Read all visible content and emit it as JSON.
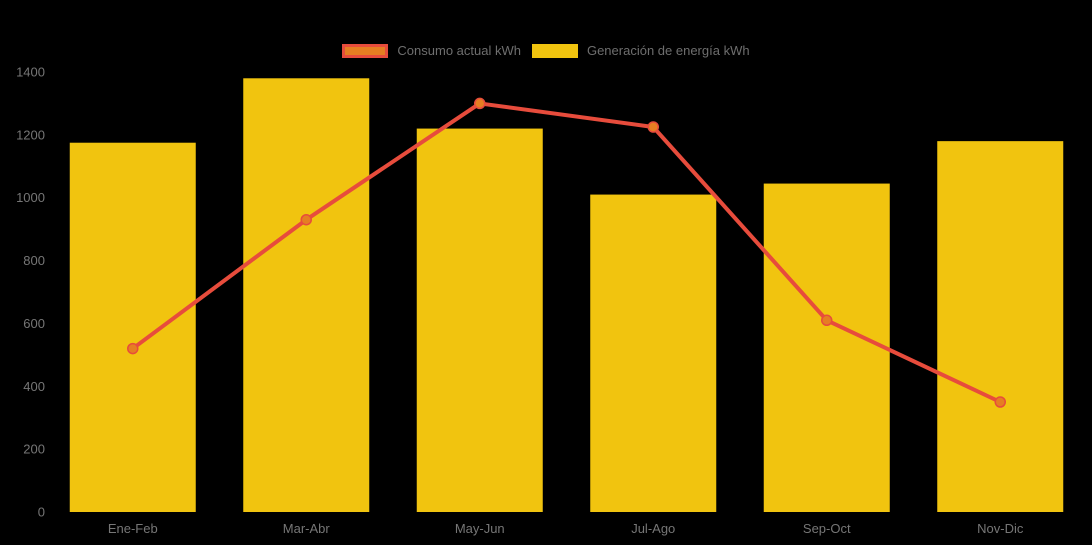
{
  "page": {
    "background_color": "#000000"
  },
  "legend": {
    "position": "top-center",
    "text_color": "#6e6e6e"
  },
  "chart_data": {
    "type": "combo",
    "categories": [
      "Ene-Feb",
      "Mar-Abr",
      "May-Jun",
      "Jul-Ago",
      "Sep-Oct",
      "Nov-Dic"
    ],
    "series": [
      {
        "name": "Consumo actual kWh",
        "type": "line",
        "values": [
          520,
          930,
          1300,
          1225,
          610,
          350
        ],
        "line_color": "#e74c3c",
        "point_fill": "#e67e22"
      },
      {
        "name": "Generación de energía kWh",
        "type": "bar",
        "values": [
          1175,
          1380,
          1220,
          1010,
          1045,
          1180
        ],
        "bar_color": "#f1c40f"
      }
    ],
    "ylim": [
      0,
      1400
    ],
    "y_ticks": [
      0,
      200,
      400,
      600,
      800,
      1000,
      1200,
      1400
    ],
    "grid": false,
    "legend_position": "top",
    "axis_text_color": "#767676"
  }
}
